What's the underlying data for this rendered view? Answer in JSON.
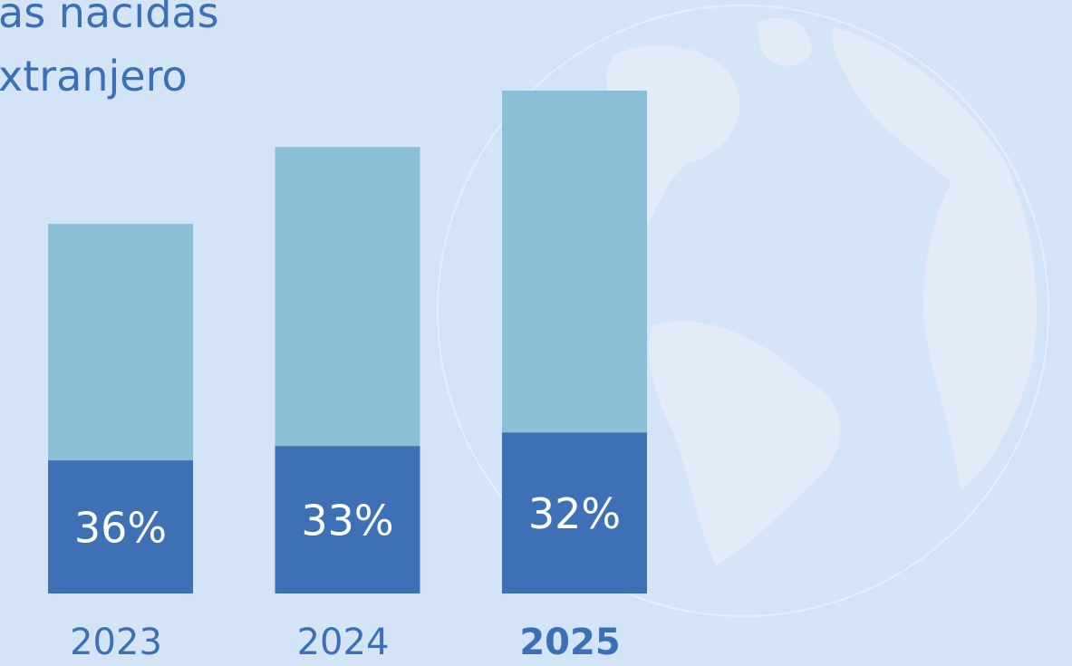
{
  "chart_data": {
    "type": "stacked_share_bar",
    "title_lines": [
      "as nacidas",
      "xtranjero"
    ],
    "categories": [
      "2023",
      "2024",
      "2025"
    ],
    "values": [
      36,
      33,
      32
    ],
    "value_labels": [
      "36%",
      "33%",
      "32%"
    ],
    "totals": [
      73.5,
      88.8,
      100
    ],
    "ylim": [
      0,
      100
    ],
    "color": "#3d70b5",
    "total_color": "#8bbfd6"
  }
}
